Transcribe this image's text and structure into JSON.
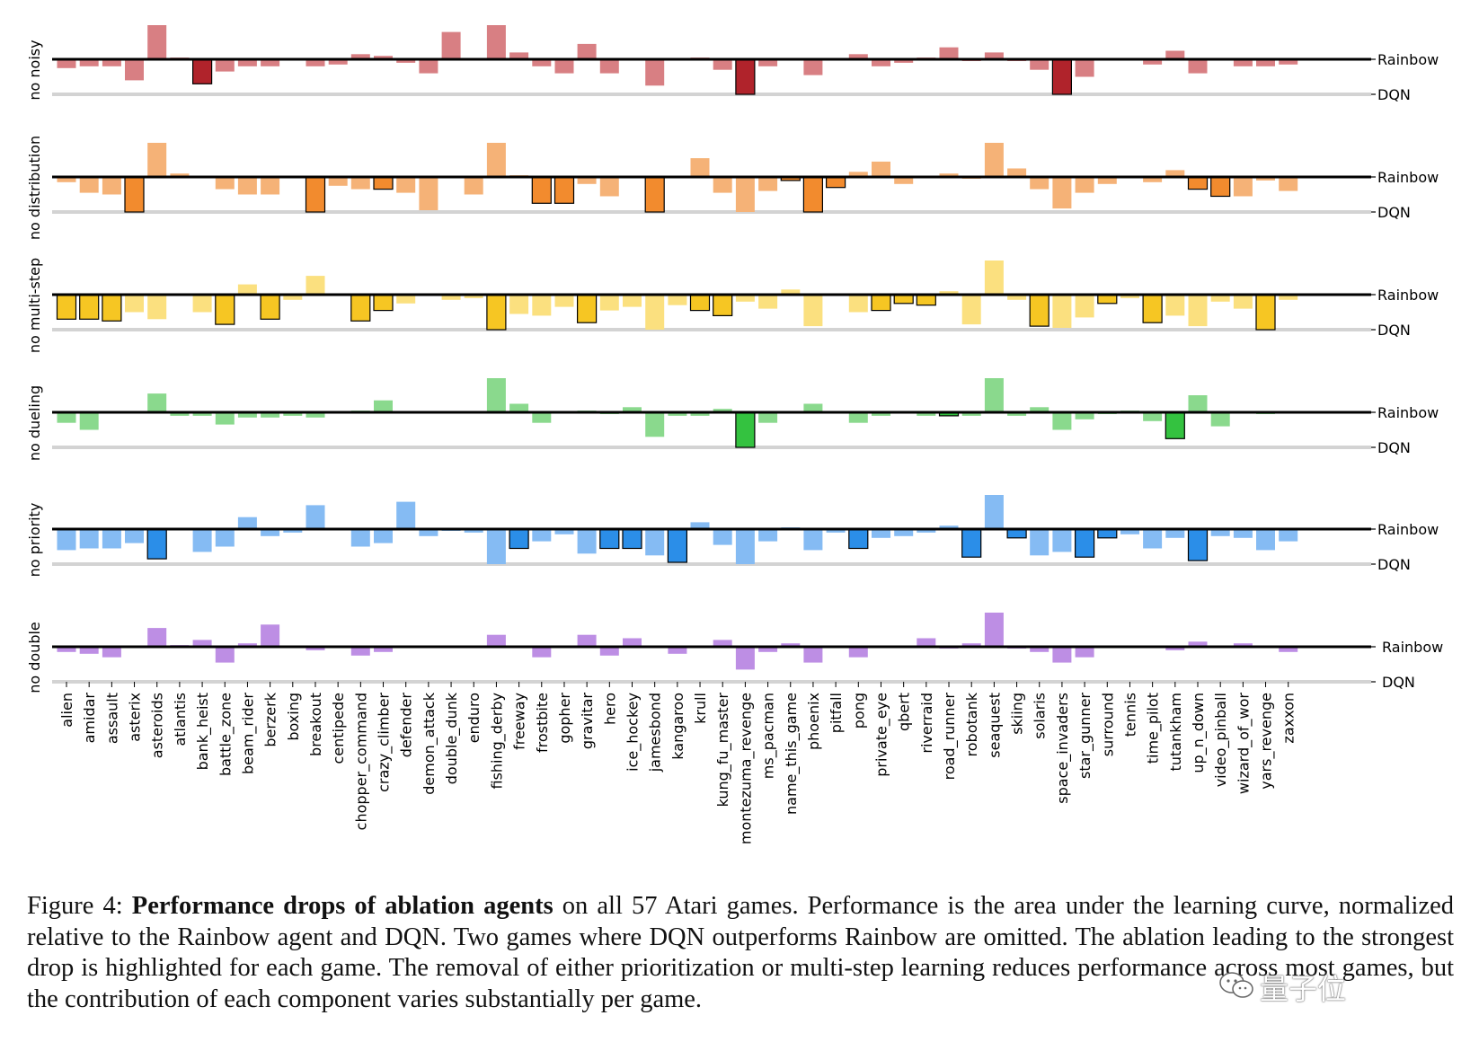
{
  "chart_data": {
    "type": "bar",
    "reference_top": "Rainbow",
    "reference_bottom": "DQN",
    "categories": [
      "alien",
      "amidar",
      "assault",
      "asterix",
      "asteroids",
      "atlantis",
      "bank_heist",
      "battle_zone",
      "beam_rider",
      "berzerk",
      "boxing",
      "breakout",
      "centipede",
      "chopper_command",
      "crazy_climber",
      "defender",
      "demon_attack",
      "double_dunk",
      "enduro",
      "fishing_derby",
      "freeway",
      "frostbite",
      "gopher",
      "gravitar",
      "hero",
      "ice_hockey",
      "jamesbond",
      "kangaroo",
      "krull",
      "kung_fu_master",
      "montezuma_revenge",
      "ms_pacman",
      "name_this_game",
      "phoenix",
      "pitfall",
      "pong",
      "private_eye",
      "qbert",
      "riverraid",
      "road_runner",
      "robotank",
      "seaquest",
      "skiing",
      "solaris",
      "space_invaders",
      "star_gunner",
      "surround",
      "tennis",
      "time_pilot",
      "tutankham",
      "up_n_down",
      "video_pinball",
      "wizard_of_wor",
      "yars_revenge",
      "zaxxon"
    ],
    "series": [
      {
        "name": "no noisy",
        "light": "#d87f83",
        "dark": "#b0232b",
        "values": [
          -0.25,
          -0.2,
          -0.2,
          -0.6,
          1.0,
          0.05,
          -0.7,
          -0.35,
          -0.2,
          -0.2,
          0,
          -0.2,
          -0.15,
          0.15,
          0.1,
          -0.1,
          -0.4,
          0.8,
          0,
          1.0,
          0.2,
          -0.2,
          -0.4,
          0.45,
          -0.4,
          0,
          -0.75,
          0,
          0.05,
          -0.3,
          -1.0,
          -0.2,
          0,
          -0.45,
          0,
          0.15,
          -0.2,
          -0.1,
          0.05,
          0.35,
          -0.05,
          0.2,
          -0.05,
          -0.3,
          -1.0,
          -0.5,
          0,
          0,
          -0.15,
          0.25,
          -0.4,
          0,
          -0.2,
          -0.2,
          -0.15
        ],
        "highlight": [
          6,
          30,
          44
        ]
      },
      {
        "name": "no distribution",
        "light": "#f5b277",
        "dark": "#f28b2e",
        "values": [
          -0.15,
          -0.45,
          -0.5,
          -1.0,
          1.0,
          0.1,
          0,
          -0.35,
          -0.5,
          -0.5,
          0,
          -1.0,
          -0.25,
          -0.35,
          -0.35,
          -0.45,
          -0.95,
          0,
          -0.5,
          1.0,
          0.05,
          -0.75,
          -0.75,
          -0.2,
          -0.55,
          0,
          -1.0,
          0,
          0.55,
          -0.45,
          -1.0,
          -0.4,
          -0.1,
          -1.0,
          -0.3,
          0.15,
          0.45,
          -0.2,
          0,
          0.1,
          -0.05,
          1.0,
          0.25,
          -0.35,
          -0.9,
          -0.45,
          -0.2,
          0,
          -0.15,
          0.2,
          -0.35,
          -0.55,
          -0.55,
          -0.1,
          -0.4
        ],
        "highlight": [
          3,
          11,
          14,
          21,
          22,
          26,
          32,
          33,
          34,
          50,
          51
        ]
      },
      {
        "name": "no multi-step",
        "light": "#fbe07f",
        "dark": "#f6c623",
        "values": [
          -0.7,
          -0.7,
          -0.75,
          -0.5,
          -0.7,
          0,
          -0.5,
          -0.85,
          0.3,
          -0.7,
          -0.15,
          0.55,
          0,
          -0.75,
          -0.45,
          -0.25,
          0,
          -0.15,
          -0.1,
          -1.0,
          -0.55,
          -0.6,
          -0.35,
          -0.8,
          -0.45,
          -0.35,
          -1.0,
          -0.3,
          -0.45,
          -0.6,
          -0.2,
          -0.4,
          0.15,
          -0.9,
          0,
          -0.5,
          -0.45,
          -0.25,
          -0.3,
          0.1,
          -0.85,
          1.0,
          -0.15,
          -0.9,
          -0.95,
          -0.65,
          -0.25,
          -0.1,
          -0.8,
          -0.6,
          -0.9,
          -0.2,
          -0.4,
          -1.0,
          -0.15
        ],
        "highlight": [
          0,
          1,
          2,
          7,
          9,
          13,
          14,
          19,
          23,
          28,
          29,
          36,
          37,
          38,
          43,
          46,
          48,
          53
        ]
      },
      {
        "name": "no dueling",
        "light": "#8ad98d",
        "dark": "#34c240",
        "values": [
          -0.3,
          -0.5,
          0,
          0,
          0.55,
          -0.1,
          -0.1,
          -0.35,
          -0.15,
          -0.15,
          -0.1,
          -0.15,
          0,
          0.05,
          0.35,
          0,
          0,
          0,
          0,
          1.0,
          0.25,
          -0.3,
          0,
          0.05,
          -0.05,
          0.15,
          -0.7,
          -0.1,
          -0.1,
          0.1,
          -1.0,
          -0.3,
          0,
          0.25,
          0,
          -0.3,
          -0.1,
          0,
          -0.1,
          -0.1,
          -0.1,
          1.0,
          -0.1,
          0.15,
          -0.5,
          -0.2,
          -0.05,
          0.05,
          -0.25,
          -0.75,
          0.5,
          -0.4,
          0,
          -0.05,
          0
        ],
        "highlight": [
          30,
          39,
          49
        ]
      },
      {
        "name": "no priority",
        "light": "#85bbf3",
        "dark": "#2b8ee8",
        "values": [
          -0.6,
          -0.55,
          -0.55,
          -0.4,
          -0.85,
          0,
          -0.65,
          -0.5,
          0.35,
          -0.2,
          -0.1,
          0.7,
          0,
          -0.5,
          -0.4,
          0.8,
          -0.2,
          -0.05,
          -0.1,
          -1.0,
          -0.55,
          -0.35,
          -0.15,
          -0.7,
          -0.55,
          -0.55,
          -0.75,
          -0.95,
          0.2,
          -0.45,
          -1.0,
          -0.35,
          0.05,
          -0.6,
          -0.1,
          -0.55,
          -0.25,
          -0.2,
          -0.1,
          0.1,
          -0.8,
          1.0,
          -0.25,
          -0.75,
          -0.65,
          -0.8,
          -0.25,
          -0.15,
          -0.55,
          -0.25,
          -0.9,
          -0.2,
          -0.25,
          -0.6,
          -0.35
        ],
        "highlight": [
          4,
          20,
          24,
          25,
          27,
          35,
          40,
          42,
          45,
          46,
          50
        ]
      },
      {
        "name": "no double",
        "light": "#bd8ee4",
        "dark": "#9b5bd6",
        "values": [
          -0.15,
          -0.2,
          -0.3,
          0,
          0.55,
          0.05,
          0.2,
          -0.45,
          0.1,
          0.65,
          0,
          -0.1,
          0,
          -0.25,
          -0.15,
          0,
          0,
          0.02,
          0,
          0.35,
          0,
          -0.3,
          0,
          0.35,
          -0.25,
          0.25,
          0.02,
          -0.2,
          0,
          0.2,
          -0.65,
          -0.15,
          0.1,
          -0.45,
          0.02,
          -0.3,
          0,
          0,
          0.25,
          -0.05,
          0.1,
          1.0,
          -0.05,
          -0.15,
          -0.45,
          -0.3,
          0,
          0,
          0,
          -0.1,
          0.15,
          0,
          0.1,
          0,
          -0.15
        ],
        "highlight": []
      }
    ],
    "ylim": [
      -1,
      1
    ]
  },
  "caption": {
    "prefix": "Figure 4: ",
    "bold": "Performance drops of ablation agents",
    "rest": " on all 57 Atari games. Performance is the area under the learning curve, normalized relative to the Rainbow agent and DQN. Two games where DQN outperforms Rainbow are omitted. The ablation leading to the strongest drop is highlighted for each game. The removal of either prioritization or multi-step learning reduces performance across most games, but the contribution of each component varies substantially per game."
  },
  "watermark": "量子位"
}
